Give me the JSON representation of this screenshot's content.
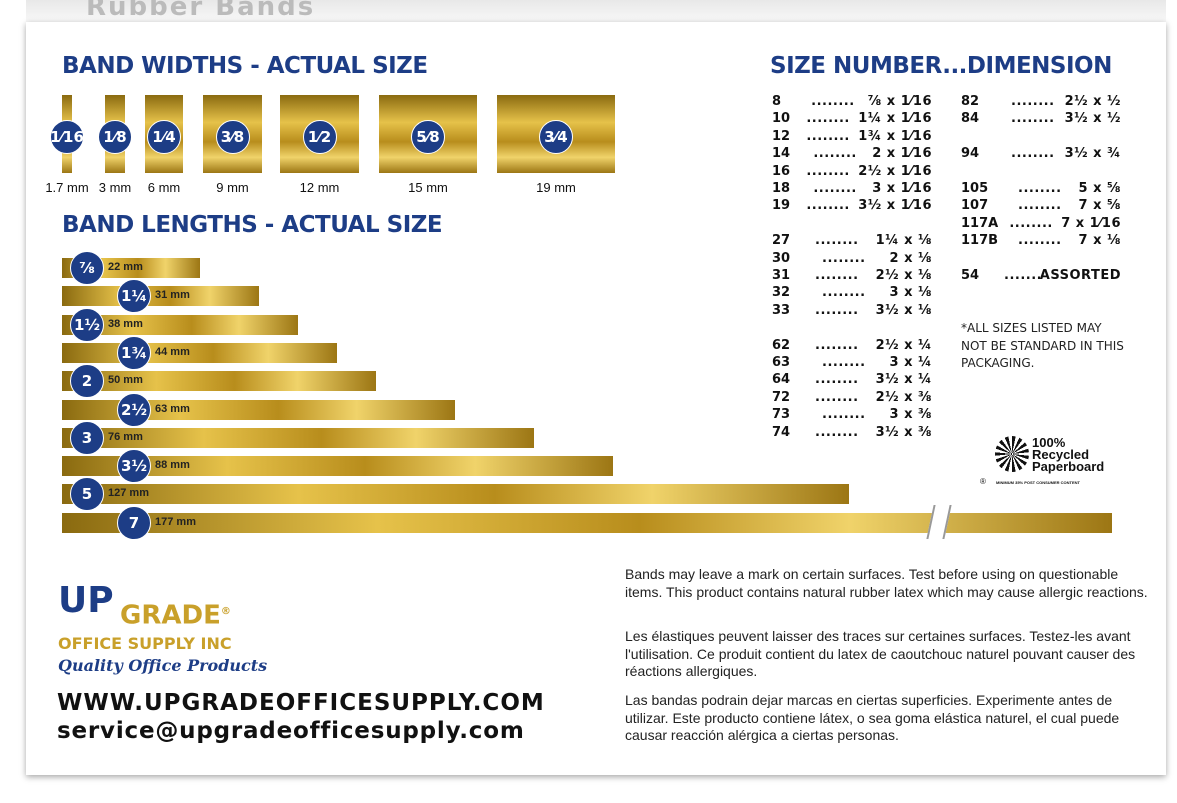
{
  "header_partial": "Rubber Bands",
  "widths": {
    "title": "BAND WIDTHS - ACTUAL SIZE",
    "items": [
      {
        "fraction": "1⁄16",
        "mm": "1.7 mm"
      },
      {
        "fraction": "1⁄8",
        "mm": "3 mm"
      },
      {
        "fraction": "1⁄4",
        "mm": "6 mm"
      },
      {
        "fraction": "3⁄8",
        "mm": "9 mm"
      },
      {
        "fraction": "1⁄2",
        "mm": "12 mm"
      },
      {
        "fraction": "5⁄8",
        "mm": "15 mm"
      },
      {
        "fraction": "3⁄4",
        "mm": "19 mm"
      }
    ]
  },
  "lengths": {
    "title": "BAND LENGTHS - ACTUAL SIZE",
    "items": [
      {
        "inch": "⅞",
        "mm": "22 mm"
      },
      {
        "inch": "1¼",
        "mm": "31 mm"
      },
      {
        "inch": "1½",
        "mm": "38 mm"
      },
      {
        "inch": "1¾",
        "mm": "44 mm"
      },
      {
        "inch": "2",
        "mm": "50 mm"
      },
      {
        "inch": "2½",
        "mm": "63 mm"
      },
      {
        "inch": "3",
        "mm": "76 mm"
      },
      {
        "inch": "3½",
        "mm": "88 mm"
      },
      {
        "inch": "5",
        "mm": "127 mm"
      },
      {
        "inch": "7",
        "mm": "177 mm"
      }
    ]
  },
  "sizes": {
    "title": "SIZE NUMBER...DIMENSION",
    "left": [
      [
        "8",
        "⅞ x 1⁄16"
      ],
      [
        "10",
        "1¼ x 1⁄16"
      ],
      [
        "12",
        "1¾ x 1⁄16"
      ],
      [
        "14",
        "2 x 1⁄16"
      ],
      [
        "16",
        "2½ x 1⁄16"
      ],
      [
        "18",
        "3 x 1⁄16"
      ],
      [
        "19",
        "3½ x 1⁄16"
      ],
      null,
      [
        "27",
        "1¼ x ⅛"
      ],
      [
        "30",
        "2 x ⅛"
      ],
      [
        "31",
        "2½ x ⅛"
      ],
      [
        "32",
        "3 x ⅛"
      ],
      [
        "33",
        "3½ x ⅛"
      ],
      null,
      [
        "62",
        "2½ x ¼"
      ],
      [
        "63",
        "3 x ¼"
      ],
      [
        "64",
        "3½ x ¼"
      ],
      [
        "72",
        "2½ x ⅜"
      ],
      [
        "73",
        "3 x ⅜"
      ],
      [
        "74",
        "3½ x ⅜"
      ]
    ],
    "right": [
      [
        "82",
        "2½ x ½"
      ],
      [
        "84",
        "3½ x ½"
      ],
      null,
      [
        "94",
        "3½ x ¾"
      ],
      null,
      [
        "105",
        "5 x ⅝"
      ],
      [
        "107",
        "7 x ⅝"
      ],
      [
        "117A",
        "7 x 1⁄16"
      ],
      [
        "117B",
        "7 x ⅛"
      ],
      null,
      [
        "54",
        "ASSORTED"
      ]
    ],
    "dots": "........",
    "note": "*ALL SIZES LISTED MAY NOT BE STANDARD IN THIS PACKAGING."
  },
  "recycle": {
    "line1": "100%",
    "line2": "Recycled",
    "line3": "Paperboard",
    "small": "MINIMUM 35% POST CONSUMER CONTENT"
  },
  "brand": {
    "up": "UP",
    "grade": "GRADE",
    "reg": "®",
    "company": "OFFICE SUPPLY INC",
    "tagline": "Quality Office Products",
    "website": "WWW.UPGRADEOFFICESUPPLY.COM",
    "email": "service@upgradeofficesupply.com"
  },
  "warnings": {
    "en": "Bands may leave a mark on certain surfaces. Test before using on questionable items. This product contains natural rubber latex which may cause allergic reactions.",
    "fr": "Les élastiques peuvent laisser des traces sur certaines surfaces. Testez-les avant l'utilisation. Ce produit contient du latex de caoutchouc naturel pouvant causer des réactions allergiques.",
    "es": "Las bandas podrain dejar marcas en ciertas superficies. Experimente antes de utilizar. Este producto contiene látex, o sea goma elástica naturel, el cual puede causar reacción alérgica a ciertas personas."
  },
  "colors": {
    "navy": "#1d3d86",
    "gold": "#c9a02a"
  }
}
